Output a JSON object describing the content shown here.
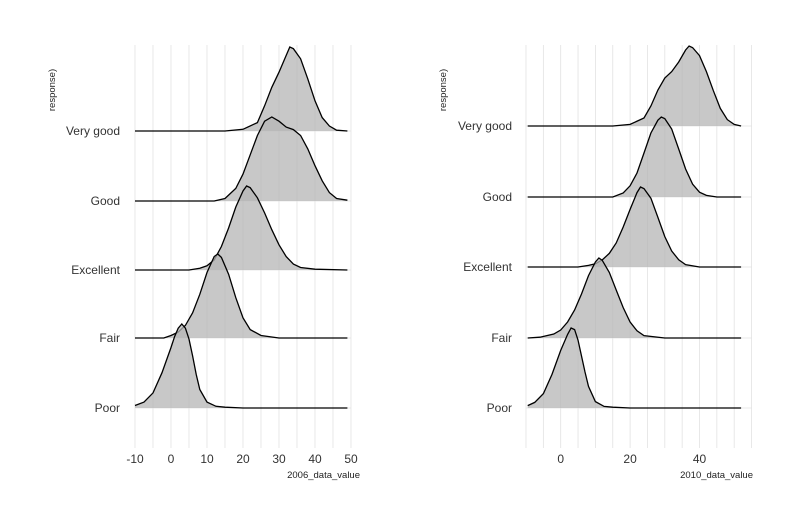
{
  "chart_data": [
    {
      "type": "ridgeline",
      "xlabel": "2006_data_value",
      "ylabel": "response)",
      "xlim": [
        -10,
        50
      ],
      "xticks": [
        -10,
        0,
        10,
        20,
        30,
        40,
        50
      ],
      "grid": true,
      "categories": [
        "Poor",
        "Fair",
        "Excellent",
        "Good",
        "Very good"
      ],
      "series": [
        {
          "category": "Poor",
          "x": [
            -10,
            -7.5,
            -5,
            -2.5,
            0,
            1,
            2,
            3,
            4,
            5,
            6,
            7,
            8,
            10,
            12.5,
            15,
            20,
            30,
            40,
            49
          ],
          "density": [
            0.03,
            0.07,
            0.18,
            0.42,
            0.72,
            0.85,
            0.95,
            1.0,
            0.95,
            0.82,
            0.62,
            0.4,
            0.22,
            0.07,
            0.02,
            0.01,
            0,
            0,
            0,
            0
          ]
        },
        {
          "category": "Fair",
          "x": [
            -10,
            -2,
            0,
            2,
            4,
            6,
            8,
            10,
            12,
            13,
            14,
            16,
            18,
            20,
            22,
            25,
            30,
            40,
            49
          ],
          "density": [
            0,
            0,
            0.03,
            0.07,
            0.15,
            0.3,
            0.52,
            0.78,
            0.97,
            1.0,
            0.96,
            0.76,
            0.48,
            0.24,
            0.1,
            0.03,
            0,
            0,
            0
          ]
        },
        {
          "category": "Excellent",
          "x": [
            -10,
            5,
            8,
            10,
            12,
            14,
            16,
            18,
            20,
            21,
            22,
            24,
            26,
            28,
            30,
            32,
            34,
            36,
            40,
            49
          ],
          "density": [
            0,
            0,
            0.02,
            0.05,
            0.12,
            0.28,
            0.5,
            0.75,
            0.94,
            1.0,
            0.98,
            0.86,
            0.68,
            0.48,
            0.3,
            0.16,
            0.07,
            0.03,
            0.01,
            0
          ]
        },
        {
          "category": "Good",
          "x": [
            -10,
            12,
            15,
            18,
            20,
            22,
            24,
            26,
            28,
            30,
            32,
            34,
            36,
            38,
            40,
            42,
            44,
            46,
            49
          ],
          "density": [
            0,
            0,
            0.03,
            0.15,
            0.32,
            0.55,
            0.78,
            0.95,
            1.0,
            0.95,
            0.88,
            0.85,
            0.78,
            0.62,
            0.42,
            0.24,
            0.1,
            0.03,
            0.01
          ]
        },
        {
          "category": "Very good",
          "x": [
            -10,
            15,
            20,
            24,
            26,
            28,
            30,
            32,
            33,
            34,
            36,
            38,
            40,
            42,
            44,
            46,
            49
          ],
          "density": [
            0,
            0,
            0.02,
            0.1,
            0.3,
            0.52,
            0.7,
            0.9,
            1.0,
            0.98,
            0.86,
            0.62,
            0.36,
            0.16,
            0.06,
            0.01,
            0
          ]
        }
      ]
    },
    {
      "type": "ridgeline",
      "xlabel": "2010_data_value",
      "ylabel": "response)",
      "xlim": [
        -10,
        55
      ],
      "xticks": [
        0,
        20,
        40
      ],
      "grid": true,
      "categories": [
        "Poor",
        "Fair",
        "Excellent",
        "Good",
        "Very good"
      ],
      "series": [
        {
          "category": "Poor",
          "x": [
            -9.5,
            -7.5,
            -5,
            -2.5,
            0,
            2,
            3,
            4,
            5,
            6,
            7,
            8,
            10,
            12.5,
            15,
            20,
            30,
            40,
            52
          ],
          "density": [
            0.03,
            0.07,
            0.18,
            0.42,
            0.72,
            0.92,
            1.0,
            0.98,
            0.85,
            0.65,
            0.45,
            0.27,
            0.08,
            0.02,
            0.01,
            0,
            0,
            0,
            0
          ]
        },
        {
          "category": "Fair",
          "x": [
            -9.5,
            -6,
            -2,
            0,
            2,
            4,
            6,
            8,
            10,
            11,
            12,
            14,
            16,
            18,
            20,
            22,
            24,
            30,
            40,
            52
          ],
          "density": [
            0,
            0.01,
            0.05,
            0.1,
            0.2,
            0.35,
            0.55,
            0.78,
            0.95,
            1.0,
            0.97,
            0.82,
            0.6,
            0.38,
            0.2,
            0.09,
            0.03,
            0,
            0,
            0
          ]
        },
        {
          "category": "Excellent",
          "x": [
            -9.5,
            5,
            8,
            10,
            12,
            14,
            16,
            18,
            20,
            22,
            23,
            24,
            26,
            28,
            30,
            32,
            34,
            36,
            40,
            52
          ],
          "density": [
            0,
            0,
            0.02,
            0.04,
            0.09,
            0.17,
            0.3,
            0.5,
            0.72,
            0.93,
            1.0,
            0.98,
            0.86,
            0.62,
            0.38,
            0.2,
            0.09,
            0.03,
            0,
            0
          ]
        },
        {
          "category": "Good",
          "x": [
            -9.5,
            15,
            18,
            20,
            22,
            24,
            26,
            28,
            29,
            30,
            32,
            34,
            36,
            38,
            40,
            42,
            45,
            52
          ],
          "density": [
            0,
            0,
            0.05,
            0.14,
            0.3,
            0.55,
            0.8,
            0.96,
            1.0,
            0.98,
            0.85,
            0.6,
            0.35,
            0.16,
            0.06,
            0.02,
            0,
            0
          ]
        },
        {
          "category": "Very good",
          "x": [
            -9.5,
            15,
            20,
            24,
            26,
            28,
            30,
            32,
            34,
            36,
            37,
            38,
            40,
            42,
            44,
            46,
            48,
            50,
            52
          ],
          "density": [
            0,
            0,
            0.02,
            0.1,
            0.25,
            0.45,
            0.6,
            0.68,
            0.8,
            0.95,
            1.0,
            0.98,
            0.88,
            0.68,
            0.44,
            0.22,
            0.08,
            0.02,
            0
          ]
        }
      ]
    }
  ]
}
